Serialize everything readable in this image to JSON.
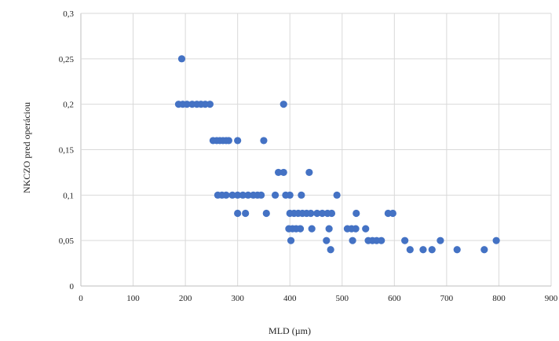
{
  "chart_data": {
    "type": "scatter",
    "xlabel": "MLD (µm)",
    "ylabel": "NKCZO pred operáciou",
    "xlim": [
      0,
      900
    ],
    "ylim": [
      0,
      0.3
    ],
    "x_ticks": [
      0,
      100,
      200,
      300,
      400,
      500,
      600,
      700,
      800,
      900
    ],
    "y_ticks": [
      0,
      0.05,
      0.1,
      0.15,
      0.2,
      0.25,
      0.3
    ],
    "x_tick_labels": [
      "0",
      "100",
      "200",
      "300",
      "400",
      "500",
      "600",
      "700",
      "800",
      "900"
    ],
    "y_tick_labels": [
      "0",
      "0,05",
      "0,1",
      "0,15",
      "0,2",
      "0,25",
      "0,3"
    ],
    "grid": true,
    "legend": "none",
    "color": "#4472c4",
    "points": [
      {
        "x": 193,
        "y": 0.25
      },
      {
        "x": 187,
        "y": 0.2
      },
      {
        "x": 195,
        "y": 0.2
      },
      {
        "x": 203,
        "y": 0.2
      },
      {
        "x": 213,
        "y": 0.2
      },
      {
        "x": 222,
        "y": 0.2
      },
      {
        "x": 230,
        "y": 0.2
      },
      {
        "x": 238,
        "y": 0.2
      },
      {
        "x": 247,
        "y": 0.2
      },
      {
        "x": 388,
        "y": 0.2
      },
      {
        "x": 253,
        "y": 0.16
      },
      {
        "x": 260,
        "y": 0.16
      },
      {
        "x": 266,
        "y": 0.16
      },
      {
        "x": 272,
        "y": 0.16
      },
      {
        "x": 278,
        "y": 0.16
      },
      {
        "x": 283,
        "y": 0.16
      },
      {
        "x": 300,
        "y": 0.16
      },
      {
        "x": 350,
        "y": 0.16
      },
      {
        "x": 378,
        "y": 0.125
      },
      {
        "x": 388,
        "y": 0.125
      },
      {
        "x": 437,
        "y": 0.125
      },
      {
        "x": 262,
        "y": 0.1
      },
      {
        "x": 270,
        "y": 0.1
      },
      {
        "x": 278,
        "y": 0.1
      },
      {
        "x": 290,
        "y": 0.1
      },
      {
        "x": 300,
        "y": 0.1
      },
      {
        "x": 310,
        "y": 0.1
      },
      {
        "x": 320,
        "y": 0.1
      },
      {
        "x": 330,
        "y": 0.1
      },
      {
        "x": 338,
        "y": 0.1
      },
      {
        "x": 345,
        "y": 0.1
      },
      {
        "x": 372,
        "y": 0.1
      },
      {
        "x": 392,
        "y": 0.1
      },
      {
        "x": 400,
        "y": 0.1
      },
      {
        "x": 422,
        "y": 0.1
      },
      {
        "x": 490,
        "y": 0.1
      },
      {
        "x": 300,
        "y": 0.08
      },
      {
        "x": 315,
        "y": 0.08
      },
      {
        "x": 355,
        "y": 0.08
      },
      {
        "x": 400,
        "y": 0.08
      },
      {
        "x": 408,
        "y": 0.08
      },
      {
        "x": 416,
        "y": 0.08
      },
      {
        "x": 424,
        "y": 0.08
      },
      {
        "x": 432,
        "y": 0.08
      },
      {
        "x": 440,
        "y": 0.08
      },
      {
        "x": 452,
        "y": 0.08
      },
      {
        "x": 462,
        "y": 0.08
      },
      {
        "x": 472,
        "y": 0.08
      },
      {
        "x": 480,
        "y": 0.08
      },
      {
        "x": 527,
        "y": 0.08
      },
      {
        "x": 588,
        "y": 0.08
      },
      {
        "x": 597,
        "y": 0.08
      },
      {
        "x": 398,
        "y": 0.063
      },
      {
        "x": 405,
        "y": 0.063
      },
      {
        "x": 412,
        "y": 0.063
      },
      {
        "x": 420,
        "y": 0.063
      },
      {
        "x": 442,
        "y": 0.063
      },
      {
        "x": 475,
        "y": 0.063
      },
      {
        "x": 510,
        "y": 0.063
      },
      {
        "x": 518,
        "y": 0.063
      },
      {
        "x": 526,
        "y": 0.063
      },
      {
        "x": 545,
        "y": 0.063
      },
      {
        "x": 402,
        "y": 0.05
      },
      {
        "x": 470,
        "y": 0.05
      },
      {
        "x": 520,
        "y": 0.05
      },
      {
        "x": 550,
        "y": 0.05
      },
      {
        "x": 558,
        "y": 0.05
      },
      {
        "x": 566,
        "y": 0.05
      },
      {
        "x": 575,
        "y": 0.05
      },
      {
        "x": 620,
        "y": 0.05
      },
      {
        "x": 688,
        "y": 0.05
      },
      {
        "x": 795,
        "y": 0.05
      },
      {
        "x": 478,
        "y": 0.04
      },
      {
        "x": 630,
        "y": 0.04
      },
      {
        "x": 655,
        "y": 0.04
      },
      {
        "x": 672,
        "y": 0.04
      },
      {
        "x": 720,
        "y": 0.04
      },
      {
        "x": 772,
        "y": 0.04
      }
    ]
  }
}
